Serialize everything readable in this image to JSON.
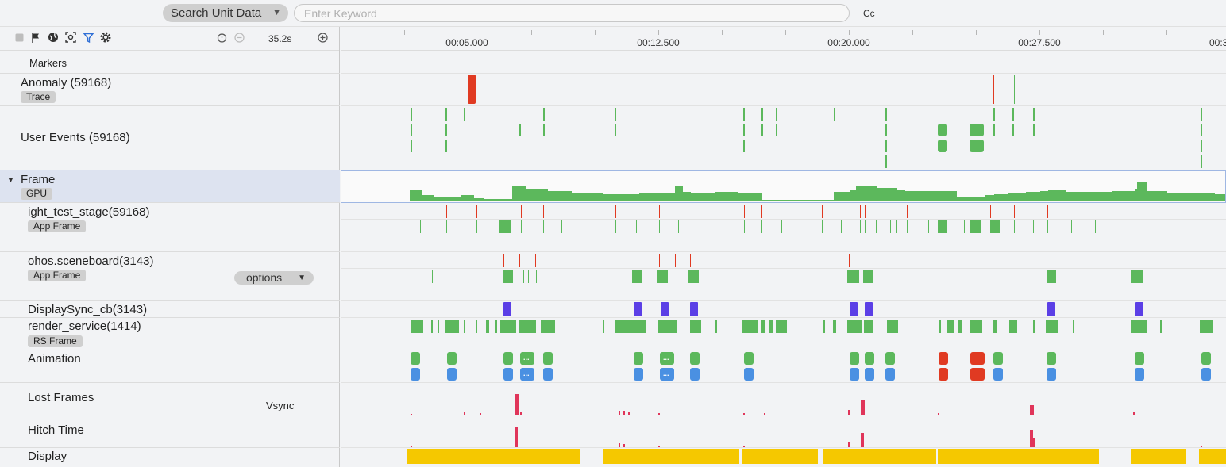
{
  "toolbar": {
    "search_unit_label": "Search Unit Data",
    "keyword_placeholder": "Enter Keyword",
    "case_button": "Cc",
    "duration": "35.2s",
    "icons": [
      "stop-icon",
      "flag-icon",
      "globe-icon",
      "capture-icon",
      "filter-icon",
      "settings-icon",
      "timer-icon",
      "zoom-out-icon",
      "zoom-in-icon"
    ]
  },
  "ruler": {
    "time_labels": [
      "00:05.000",
      "00:12.500",
      "00:20.000",
      "00:27.500",
      "00:3"
    ]
  },
  "rows": {
    "markers": {
      "name": "Markers"
    },
    "anomaly": {
      "name": "Anomaly (59168)",
      "tag": "Trace"
    },
    "user_events": {
      "name": "User Events (59168)"
    },
    "frame": {
      "name": "Frame",
      "tag": "GPU"
    },
    "light_test_stage": {
      "name": "ight_test_stage(59168)",
      "tag": "App Frame"
    },
    "sceneboard": {
      "name": "ohos.sceneboard(3143)",
      "tag": "App Frame"
    },
    "displaysync": {
      "name": "DisplaySync_cb(3143)"
    },
    "render_service": {
      "name": "render_service(1414)",
      "tag": "RS Frame",
      "options_label": "options"
    },
    "animation": {
      "name": "Animation",
      "more_label": "..."
    },
    "lost_frames": {
      "name": "Lost Frames"
    },
    "hitch_time": {
      "name": "Hitch Time"
    },
    "display": {
      "name": "Display",
      "vsync_label": "Vsync"
    }
  },
  "colors": {
    "green": "#5cb85c",
    "red": "#e03a22",
    "blue": "#4a90e2",
    "purple": "#5b3fe6",
    "pink": "#e0355a",
    "yellow": "#f5c800",
    "selected_row": "#dde3f0"
  }
}
